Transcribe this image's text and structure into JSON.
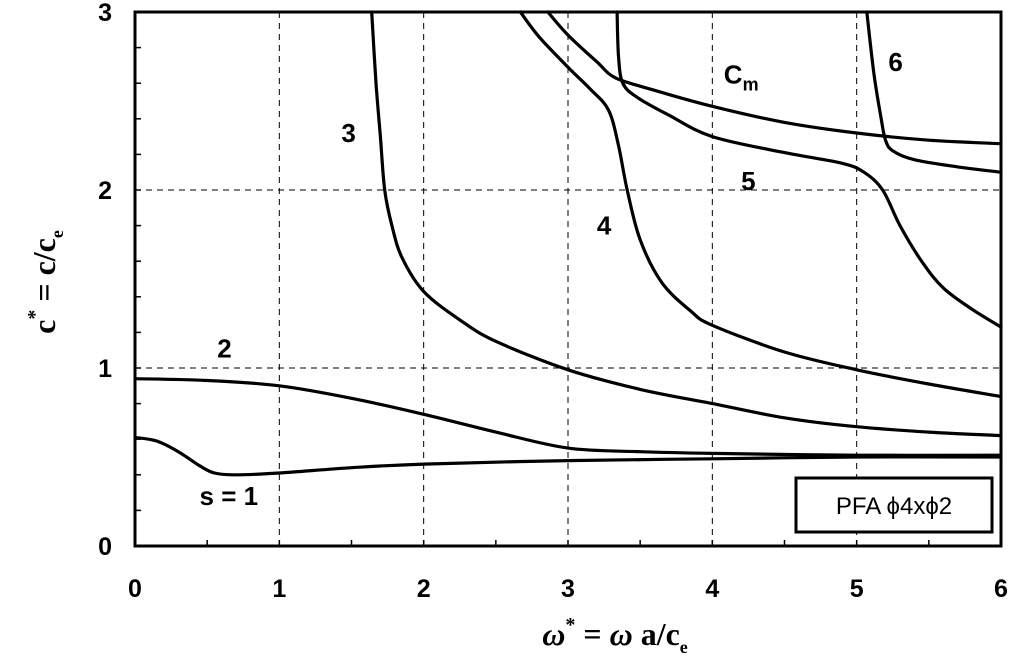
{
  "chart_data": {
    "type": "line",
    "title": "",
    "xlabel": "ω* = ω a/c_e",
    "ylabel": "c* = c/c_e",
    "xlim": [
      0,
      6
    ],
    "ylim": [
      0,
      3
    ],
    "x_ticks": [
      "0",
      "1",
      "2",
      "3",
      "4",
      "5",
      "6"
    ],
    "y_ticks": [
      "0",
      "1",
      "2",
      "3"
    ],
    "grid": true,
    "legend": {
      "text": "PFA  ϕ4xϕ2",
      "position": "lower right"
    },
    "series": [
      {
        "name": "s = 1",
        "label_pos": [
          0.65,
          0.28
        ],
        "points": [
          [
            0,
            0.61
          ],
          [
            0.15,
            0.59
          ],
          [
            0.3,
            0.53
          ],
          [
            0.45,
            0.45
          ],
          [
            0.55,
            0.41
          ],
          [
            0.7,
            0.4
          ],
          [
            1,
            0.41
          ],
          [
            1.5,
            0.44
          ],
          [
            2,
            0.46
          ],
          [
            3,
            0.48
          ],
          [
            4,
            0.49
          ],
          [
            5,
            0.5
          ],
          [
            6,
            0.5
          ]
        ]
      },
      {
        "name": "2",
        "label_pos": [
          0.62,
          1.11
        ],
        "points": [
          [
            0,
            0.94
          ],
          [
            0.5,
            0.93
          ],
          [
            1,
            0.9
          ],
          [
            1.5,
            0.83
          ],
          [
            2,
            0.74
          ],
          [
            2.5,
            0.64
          ],
          [
            3,
            0.55
          ],
          [
            3.5,
            0.53
          ],
          [
            4,
            0.52
          ],
          [
            5,
            0.51
          ],
          [
            6,
            0.51
          ]
        ]
      },
      {
        "name": "3",
        "label_pos": [
          1.48,
          2.32
        ],
        "points": [
          [
            1.64,
            3.0
          ],
          [
            1.67,
            2.6
          ],
          [
            1.7,
            2.3
          ],
          [
            1.73,
            2.0
          ],
          [
            1.78,
            1.8
          ],
          [
            1.85,
            1.62
          ],
          [
            2,
            1.43
          ],
          [
            2.25,
            1.27
          ],
          [
            2.5,
            1.15
          ],
          [
            3,
            0.99
          ],
          [
            3.5,
            0.88
          ],
          [
            4,
            0.8
          ],
          [
            4.5,
            0.72
          ],
          [
            5,
            0.67
          ],
          [
            5.5,
            0.64
          ],
          [
            6,
            0.62
          ]
        ]
      },
      {
        "name": "4",
        "label_pos": [
          3.25,
          1.8
        ],
        "points": [
          [
            2.67,
            3.0
          ],
          [
            2.8,
            2.86
          ],
          [
            3.0,
            2.69
          ],
          [
            3.15,
            2.57
          ],
          [
            3.28,
            2.45
          ],
          [
            3.35,
            2.25
          ],
          [
            3.41,
            2.0
          ],
          [
            3.5,
            1.72
          ],
          [
            3.65,
            1.48
          ],
          [
            3.85,
            1.32
          ],
          [
            4,
            1.24
          ],
          [
            4.5,
            1.09
          ],
          [
            5,
            0.99
          ],
          [
            5.5,
            0.91
          ],
          [
            6,
            0.84
          ]
        ]
      },
      {
        "name": "C_m",
        "label_pos": [
          4.2,
          2.65
        ],
        "points": [
          [
            2.86,
            3.0
          ],
          [
            3.0,
            2.87
          ],
          [
            3.2,
            2.72
          ],
          [
            3.33,
            2.63
          ],
          [
            3.6,
            2.56
          ],
          [
            4,
            2.47
          ],
          [
            4.5,
            2.38
          ],
          [
            5,
            2.32
          ],
          [
            5.5,
            2.28
          ],
          [
            6,
            2.26
          ]
        ]
      },
      {
        "name": "5",
        "label_pos": [
          4.25,
          2.05
        ],
        "points": [
          [
            3.34,
            3.0
          ],
          [
            3.35,
            2.75
          ],
          [
            3.38,
            2.6
          ],
          [
            3.48,
            2.52
          ],
          [
            3.7,
            2.42
          ],
          [
            4,
            2.3
          ],
          [
            4.5,
            2.21
          ],
          [
            4.9,
            2.15
          ],
          [
            5.05,
            2.1
          ],
          [
            5.18,
            2.0
          ],
          [
            5.3,
            1.8
          ],
          [
            5.45,
            1.6
          ],
          [
            5.6,
            1.45
          ],
          [
            5.8,
            1.33
          ],
          [
            6,
            1.23
          ]
        ]
      },
      {
        "name": "6",
        "label_pos": [
          5.27,
          2.72
        ],
        "points": [
          [
            5.07,
            3.0
          ],
          [
            5.12,
            2.65
          ],
          [
            5.17,
            2.4
          ],
          [
            5.2,
            2.28
          ],
          [
            5.25,
            2.22
          ],
          [
            5.4,
            2.17
          ],
          [
            5.7,
            2.13
          ],
          [
            6,
            2.1
          ]
        ]
      }
    ]
  }
}
